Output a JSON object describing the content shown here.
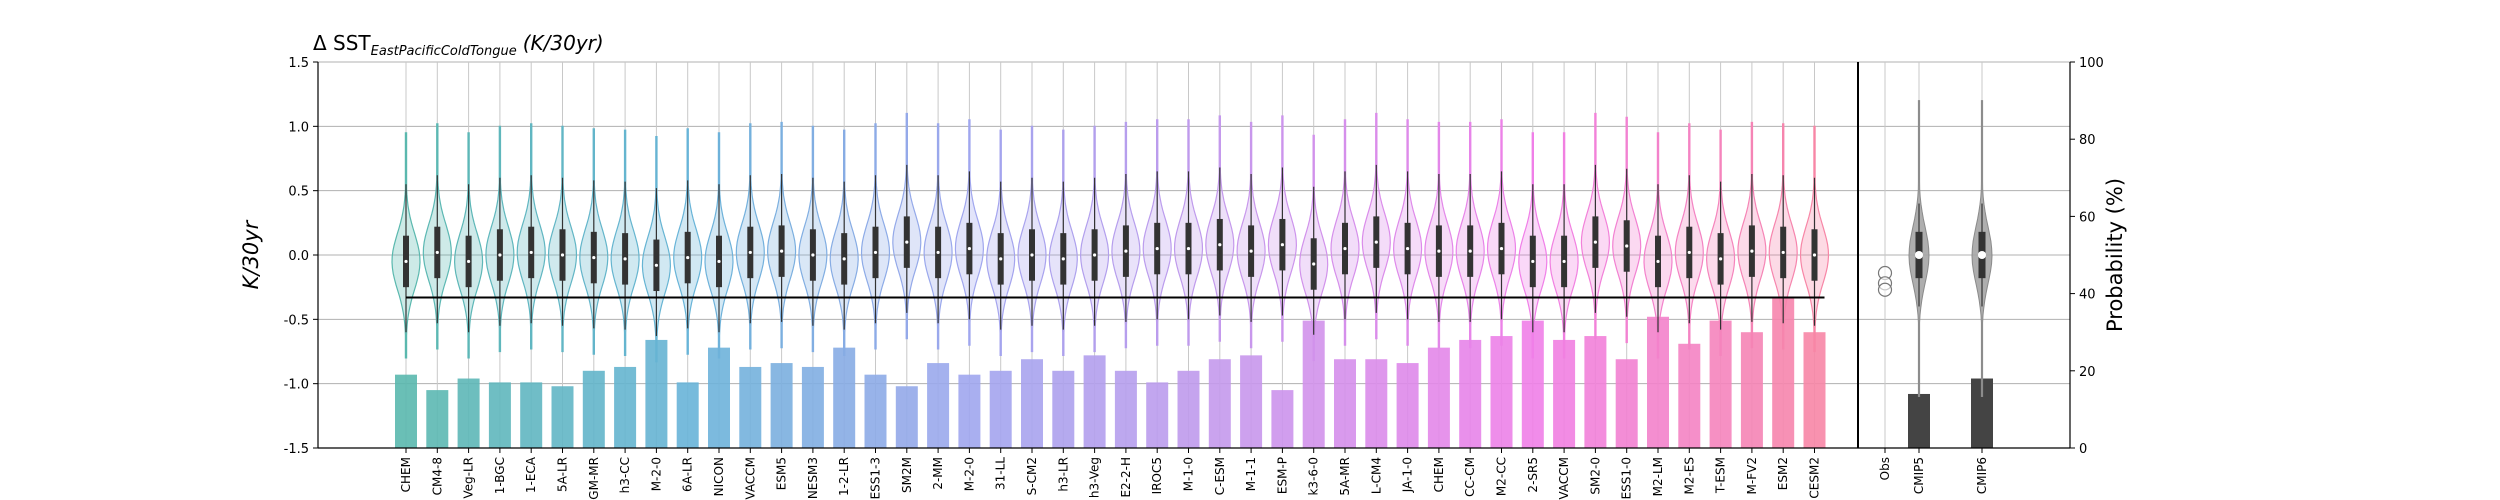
{
  "chart_data": {
    "type": "violin",
    "title": {
      "prefix": "Δ SST",
      "subscript": "EastPacificColdTongue",
      "unit": "(K/30yr)"
    },
    "ylabel": "K/30yr",
    "ylabel_right": "Probability (%)",
    "ylim": [
      -1.5,
      1.5
    ],
    "ylim_right": [
      0,
      100
    ],
    "yticks": [
      "-1.5",
      "-1.0",
      "-0.5",
      "0.0",
      "0.5",
      "1.0",
      "1.5"
    ],
    "yticks_right": [
      "0",
      "20",
      "40",
      "60",
      "80",
      "100"
    ],
    "grid": true,
    "reference_line_y": -0.33,
    "models": [
      "CHEM",
      "CM4-8",
      "Veg-LR",
      "1-BGC",
      "1-ECA",
      "5A-LR",
      "GM-MR",
      "h3-CC",
      "M-2-0",
      "6A-LR",
      "NICON",
      "VACCM",
      "ESM5",
      "NESM3",
      "1-2-LR",
      "ESS1-3",
      "SM2M",
      "2-MM",
      "M-2-0",
      "31-LL",
      "S-CM2",
      "h3-LR",
      "h3-Veg",
      "E2-2-H",
      "IROC5",
      "M-1-0",
      "C-ESM",
      "M-1-1",
      "ESM-P",
      "k3-6-0",
      "5A-MR",
      "L-CM4",
      "JA-1-0",
      "CHEM",
      "CC-CM",
      "M2-CC",
      "2-SR5",
      "VACCM",
      "SM2-0",
      "ESS1-0",
      "M2-LM",
      "M2-ES",
      "T-ESM",
      "M-FV2",
      "ESM2",
      "CESM2"
    ],
    "probabilities": [
      19,
      15,
      18,
      17,
      17,
      16,
      20,
      21,
      28,
      17,
      26,
      21,
      22,
      21,
      26,
      19,
      16,
      22,
      19,
      20,
      23,
      20,
      24,
      20,
      17,
      20,
      23,
      24,
      15,
      33,
      23,
      23,
      22,
      26,
      28,
      29,
      33,
      28,
      29,
      23,
      34,
      27,
      33,
      30,
      39,
      30
    ],
    "model_medians": [
      -0.05,
      0.02,
      -0.05,
      0.0,
      0.02,
      0.0,
      -0.02,
      -0.03,
      -0.08,
      -0.02,
      -0.05,
      0.02,
      0.03,
      0.0,
      -0.03,
      0.02,
      0.1,
      0.02,
      0.05,
      -0.03,
      0.0,
      -0.03,
      0.0,
      0.03,
      0.05,
      0.05,
      0.08,
      0.03,
      0.08,
      -0.07,
      0.05,
      0.1,
      0.05,
      0.03,
      0.03,
      0.05,
      -0.05,
      -0.05,
      0.1,
      0.07,
      -0.05,
      0.02,
      -0.03,
      0.03,
      0.02,
      0.0
    ],
    "groups": [
      "Obs",
      "CMIP5",
      "CMIP6"
    ],
    "obs_values": [
      -0.14,
      -0.22,
      -0.27
    ],
    "group_medians": [
      null,
      0.0,
      0.0
    ],
    "group_probabilities": [
      null,
      14,
      18
    ],
    "colors": {
      "model_start": "#5ab8ae",
      "model_mid1": "#68b4d8",
      "model_mid2": "#a0a6ee",
      "model_mid3": "#c897ec",
      "model_mid4": "#f07fe8",
      "model_end": "#f786a6",
      "group_bar": "#444444",
      "group_violin": "#a5a5a5",
      "reference_line": "#000000"
    }
  }
}
